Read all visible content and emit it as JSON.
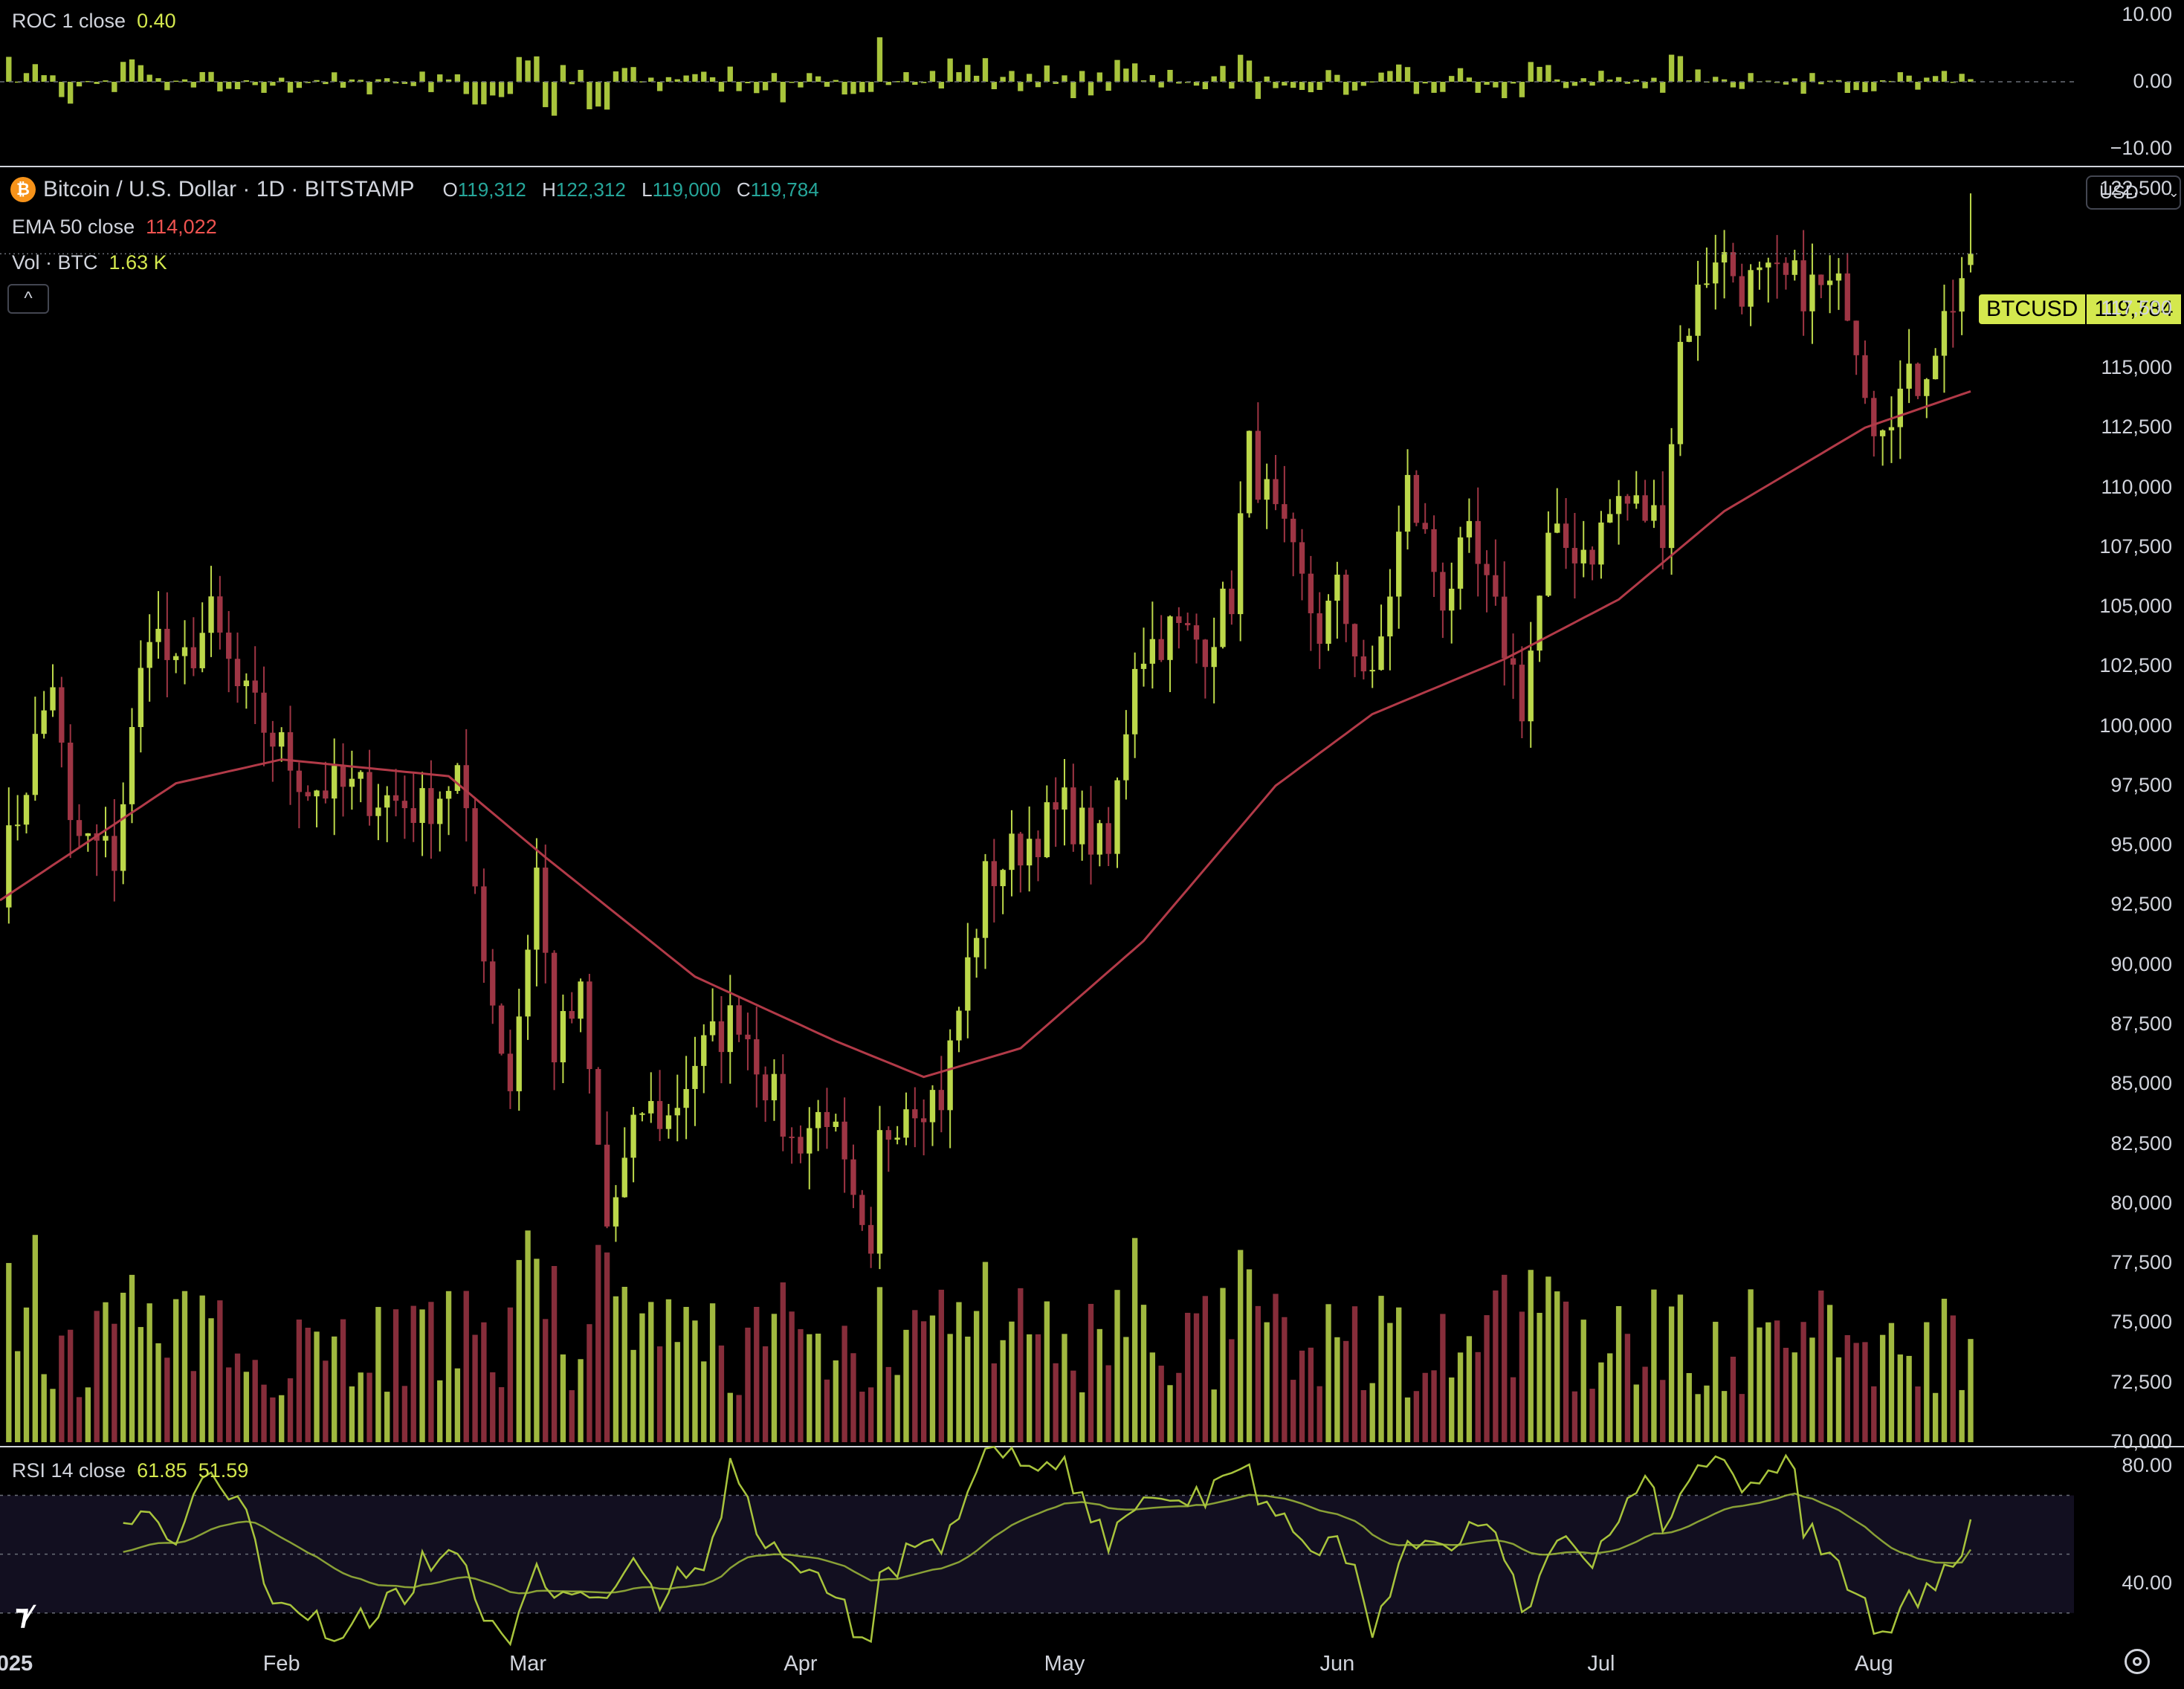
{
  "header": {
    "symbol_icon": "bitcoin-icon",
    "symbol_icon_glyph": "₿",
    "title": "Bitcoin / U.S. Dollar · 1D · BITSTAMP",
    "o_label": "O",
    "o_value": "119,312",
    "h_label": "H",
    "h_value": "122,312",
    "l_label": "L",
    "l_value": "119,000",
    "c_label": "C",
    "c_value": "119,784",
    "ema_label": "EMA 50 close",
    "ema_value": "114,022",
    "vol_label": "Vol · BTC",
    "vol_value": "1.63 K",
    "currency": "USD",
    "collapse_glyph": "^"
  },
  "roc_panel": {
    "label": "ROC 1 close",
    "value": "0.40",
    "ticks": [
      "10.00",
      "0.00",
      "−10.00"
    ]
  },
  "rsi_panel": {
    "label": "RSI 14 close",
    "value_rsi": "61.85",
    "value_ma": "51.59",
    "ticks": [
      "80.00",
      "40.00"
    ]
  },
  "price_tag": {
    "symbol": "BTCUSD",
    "value": "119,784"
  },
  "price_axis_ticks": [
    "122,500",
    "117,500",
    "115,000",
    "112,500",
    "110,000",
    "107,500",
    "105,000",
    "102,500",
    "100,000",
    "97,500",
    "95,000",
    "92,500",
    "90,000",
    "87,500",
    "85,000",
    "82,500",
    "80,000",
    "77,500",
    "75,000",
    "72,500",
    "70,000"
  ],
  "time_axis": [
    "2025",
    "Feb",
    "Mar",
    "Apr",
    "May",
    "Jun",
    "Jul",
    "Aug"
  ],
  "colors": {
    "up": "#bcd84a",
    "down": "#9e3544",
    "ema": "#b23a48",
    "rsi": "#a8c43c",
    "rsi_band": "#120f20",
    "background": "#000000",
    "ohlc_text": "#26a69a",
    "ema_text": "#ef5350",
    "vol_text": "#d4e84e"
  },
  "chart_data": {
    "type": "candlestick",
    "title": "Bitcoin / U.S. Dollar · 1D · BITSTAMP",
    "ylim": [
      70000,
      123500
    ],
    "anchors": [
      [
        "2024-12-31",
        93500
      ],
      [
        "2025-01-06",
        102000
      ],
      [
        "2025-01-08",
        95500
      ],
      [
        "2025-01-13",
        94500
      ],
      [
        "2025-01-17",
        104500
      ],
      [
        "2025-01-20",
        102000
      ],
      [
        "2025-01-24",
        104500
      ],
      [
        "2025-01-27",
        101500
      ],
      [
        "2025-01-31",
        99500
      ],
      [
        "2025-02-04",
        97500
      ],
      [
        "2025-02-11",
        97200
      ],
      [
        "2025-02-17",
        96500
      ],
      [
        "2025-02-21",
        98000
      ],
      [
        "2025-02-25",
        88500
      ],
      [
        "2025-02-27",
        85000
      ],
      [
        "2025-03-02",
        94000
      ],
      [
        "2025-03-04",
        86500
      ],
      [
        "2025-03-07",
        88500
      ],
      [
        "2025-03-10",
        79000
      ],
      [
        "2025-03-14",
        84000
      ],
      [
        "2025-03-17",
        83500
      ],
      [
        "2025-03-20",
        86000
      ],
      [
        "2025-03-25",
        88000
      ],
      [
        "2025-03-31",
        82500
      ],
      [
        "2025-04-04",
        84000
      ],
      [
        "2025-04-07",
        79500
      ],
      [
        "2025-04-09",
        77000
      ],
      [
        "2025-04-10",
        82500
      ],
      [
        "2025-04-13",
        84500
      ],
      [
        "2025-04-17",
        84500
      ],
      [
        "2025-04-22",
        93500
      ],
      [
        "2025-04-26",
        95000
      ],
      [
        "2025-05-01",
        96500
      ],
      [
        "2025-05-06",
        94500
      ],
      [
        "2025-05-09",
        103000
      ],
      [
        "2025-05-13",
        104000
      ],
      [
        "2025-05-17",
        103500
      ],
      [
        "2025-05-20",
        105500
      ],
      [
        "2025-05-22",
        111500
      ],
      [
        "2025-05-25",
        108500
      ],
      [
        "2025-05-30",
        104000
      ],
      [
        "2025-06-01",
        105500
      ],
      [
        "2025-06-05",
        101500
      ],
      [
        "2025-06-09",
        110000
      ],
      [
        "2025-06-13",
        105500
      ],
      [
        "2025-06-16",
        107500
      ],
      [
        "2025-06-20",
        103500
      ],
      [
        "2025-06-22",
        101000
      ],
      [
        "2025-06-25",
        107500
      ],
      [
        "2025-06-30",
        107500
      ],
      [
        "2025-07-03",
        109500
      ],
      [
        "2025-07-08",
        108500
      ],
      [
        "2025-07-10",
        116000
      ],
      [
        "2025-07-14",
        120000
      ],
      [
        "2025-07-17",
        118500
      ],
      [
        "2025-07-23",
        118500
      ],
      [
        "2025-07-29",
        118000
      ],
      [
        "2025-08-01",
        113000
      ],
      [
        "2025-08-06",
        114500
      ],
      [
        "2025-08-09",
        117000
      ],
      [
        "2025-08-12",
        119784
      ]
    ],
    "ema50_anchors": [
      [
        "2024-12-31",
        92700
      ],
      [
        "2025-01-20",
        97600
      ],
      [
        "2025-02-01",
        98600
      ],
      [
        "2025-02-20",
        97900
      ],
      [
        "2025-03-03",
        94500
      ],
      [
        "2025-03-20",
        89500
      ],
      [
        "2025-04-05",
        86800
      ],
      [
        "2025-04-15",
        85300
      ],
      [
        "2025-04-26",
        86500
      ],
      [
        "2025-05-10",
        91000
      ],
      [
        "2025-05-25",
        97500
      ],
      [
        "2025-06-05",
        100500
      ],
      [
        "2025-06-20",
        102800
      ],
      [
        "2025-07-03",
        105300
      ],
      [
        "2025-07-15",
        109000
      ],
      [
        "2025-07-31",
        112500
      ],
      [
        "2025-08-12",
        114022
      ]
    ],
    "last_candle": {
      "open": 119312,
      "high": 122312,
      "low": 119000,
      "close": 119784
    },
    "volume_last": 1630,
    "roc_last": 0.4,
    "roc_ylim": [
      -10,
      10
    ],
    "rsi_last": 61.85,
    "rsi_ma_last": 51.59,
    "rsi_ylim": [
      35,
      80
    ],
    "rsi_band": [
      30,
      70
    ],
    "x_range": [
      "2024-12-31",
      "2025-09-05"
    ],
    "month_ticks": [
      [
        "2025-01-01",
        "2025"
      ],
      [
        "2025-02-01",
        "Feb"
      ],
      [
        "2025-03-01",
        "Mar"
      ],
      [
        "2025-04-01",
        "Apr"
      ],
      [
        "2025-05-01",
        "May"
      ],
      [
        "2025-06-01",
        "Jun"
      ],
      [
        "2025-07-01",
        "Jul"
      ],
      [
        "2025-08-01",
        "Aug"
      ]
    ]
  }
}
